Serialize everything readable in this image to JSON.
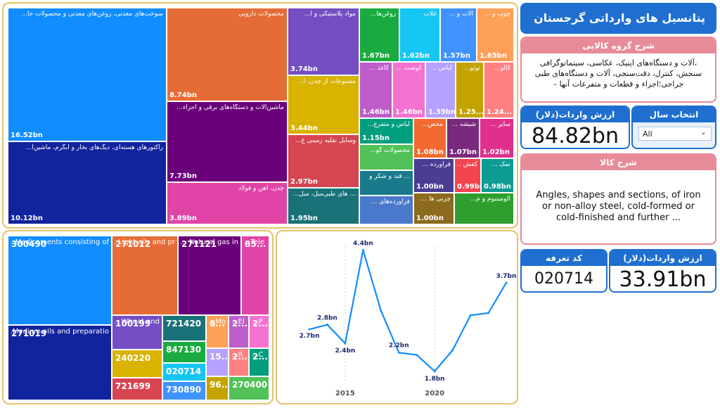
{
  "header": {
    "title": "پتانسیل های وارداتی گرجستان"
  },
  "group_desc": {
    "title": "شرح گروه کالایی",
    "text": "،آلات و دستگاه‌های اپتیک، عکاسی، سینماتوگرافی سنجش، کنترل، دقت‌سنجی، آلات و دستگاه‌های طبی جراحی؛اجزاء و قطعات و متفرعات آنها –"
  },
  "import_total": {
    "title": "ارزش واردات(دلار)",
    "value": "84.82bn"
  },
  "year_select": {
    "title": "انتخاب سال",
    "value": "All"
  },
  "goods_desc": {
    "title": "شرح کالا",
    "text": "Angles, shapes and sections, of iron or non-alloy steel, cold-formed or cold-finished and further ..."
  },
  "tariff": {
    "title": "کد تعرفه",
    "value": "020714"
  },
  "import_value": {
    "title": "ارزش واردات(دلار)",
    "value": "33.91bn"
  },
  "treemap1": [
    {
      "label": "سوخت‌های معدنی، روغن‌های معدنی و محصولات حا...",
      "value": "16.52bn",
      "color": "#118dff"
    },
    {
      "label": "رآکتورهای هسته‌ای، دیگ‌های بخار و آبگرم، ماشین‌آ...",
      "value": "10.12bn",
      "color": "#12239e"
    },
    {
      "label": "محصولات دارویی",
      "value": "8.74bn",
      "color": "#e66c37"
    },
    {
      "label": "ماشین‌آلات و دستگاه‌های برقی و اجزاء...",
      "value": "7.73bn",
      "color": "#6b007b"
    },
    {
      "label": "چدن، آهن و فولاد",
      "value": "3.89bn",
      "color": "#e044a7"
    },
    {
      "label": "مواد پلاستیکی و ا...",
      "value": "3.74bn",
      "color": "#744ec2"
    },
    {
      "label": "مصنوعات از چدن، آ...",
      "value": "3.44bn",
      "color": "#d9b300"
    },
    {
      "label": "وسایل نقلیه زمینی غ...",
      "value": "2.97bn",
      "color": "#d64550"
    },
    {
      "label": "... های طبی‌مبل، مبل...",
      "value": "1.95bn",
      "color": "#197278"
    },
    {
      "label": "روغن‌ها...",
      "value": "1.67bn",
      "color": "#1aab40"
    },
    {
      "label": "غلات",
      "value": "1.62bn",
      "color": "#15c6f4"
    },
    {
      "label": "آلات و ...",
      "value": "1.57bn",
      "color": "#4092ff"
    },
    {
      "label": "چوب و ...",
      "value": "1.65bn",
      "color": "#ffa058"
    },
    {
      "label": "کاغذ ...",
      "value": "1.46bn",
      "color": "#be5dc9"
    },
    {
      "label": "گوشت ...",
      "value": "1.46bn",
      "color": "#f472d0"
    },
    {
      "label": "لباس ...",
      "value": "1.35bn",
      "color": "#b5a1ff"
    },
    {
      "label": "توتو...",
      "value": "1.25...",
      "color": "#c4a200"
    },
    {
      "label": "کالو...",
      "value": "1.24...",
      "color": "#ff8080"
    },
    {
      "label": "لباس و متفرع...",
      "value": "1.15bn",
      "color": "#009e7d"
    },
    {
      "label": "محصولات گو...",
      "value": "",
      "color": "#52c157"
    },
    {
      "label": "... قند و شکر و",
      "value": "",
      "color": "#1a7a8c"
    },
    {
      "label": "فرآورده‌های ...",
      "value": "",
      "color": "#4a79cc"
    },
    {
      "label": "محص...",
      "value": "1.08bn",
      "color": "#f26a2f"
    },
    {
      "label": "شیشه ...",
      "value": "1.07bn",
      "color": "#7a2a7d"
    },
    {
      "label": "سایر ...",
      "value": "1.02bn",
      "color": "#e0308e"
    },
    {
      "label": "فرآورده ...",
      "value": "1.00bn",
      "color": "#4b3d94"
    },
    {
      "label": "کفش ...",
      "value": "0.99bn",
      "color": "#f2444f"
    },
    {
      "label": "نمک ...",
      "value": "0.98bn",
      "color": "#0d9c94"
    },
    {
      "label": "چربی ها ...",
      "value": "1.00bn",
      "color": "#8c6a1e"
    },
    {
      "label": "آلومینیوم و م...",
      "value": "",
      "color": "#2e9e2e"
    }
  ],
  "treemap2": [
    {
      "code": "300490",
      "label": "Medicaments consisting of ...",
      "color": "#118dff"
    },
    {
      "code": "271019",
      "label": "Medium oils and preparatio...",
      "color": "#12239e"
    },
    {
      "code": "271012",
      "label": "Light oils and pr...",
      "color": "#e66c37"
    },
    {
      "code": "271121",
      "label": "Natural gas in ...",
      "color": "#6b007b"
    },
    {
      "code": "85...",
      "label": "Tele...",
      "color": "#e044a7"
    },
    {
      "code": "100199",
      "label": "Wheat and ...",
      "color": "#744ec2"
    },
    {
      "code": "240220",
      "label": "",
      "color": "#d9b300"
    },
    {
      "code": "721699",
      "label": "",
      "color": "#d64550"
    },
    {
      "code": "721420",
      "label": "",
      "color": "#197278"
    },
    {
      "code": "847130",
      "label": "",
      "color": "#1aab40"
    },
    {
      "code": "020714",
      "label": "",
      "color": "#15c6f4"
    },
    {
      "code": "730890",
      "label": "",
      "color": "#4092ff"
    },
    {
      "code": "8...",
      "label": "Mo...",
      "color": "#ffa058"
    },
    {
      "code": "2...",
      "label": "El...",
      "color": "#be5dc9"
    },
    {
      "code": "2...",
      "label": "P...",
      "color": "#f472d0"
    },
    {
      "code": "15...",
      "label": "",
      "color": "#b5a1ff"
    },
    {
      "code": "96...",
      "label": "",
      "color": "#c4a200"
    },
    {
      "code": "2...",
      "label": "R...",
      "color": "#ff8080"
    },
    {
      "code": "2...",
      "label": "C...",
      "color": "#009e7d"
    },
    {
      "code": "270400",
      "label": "",
      "color": "#52c157"
    }
  ],
  "chart_data": {
    "type": "line",
    "x": [
      2013,
      2014,
      2015,
      2016,
      2017,
      2018,
      2019,
      2020,
      2021,
      2022,
      2023,
      2024
    ],
    "values": [
      2.7,
      2.8,
      2.4,
      4.4,
      3.1,
      2.2,
      2.15,
      1.8,
      2.25,
      3.0,
      3.05,
      3.7
    ],
    "point_labels": [
      "2.7bn",
      "2.8bn",
      "2.4bn",
      "4.4bn",
      "",
      "2.2bn",
      "",
      "1.8bn",
      "",
      "",
      "",
      "3.7bn"
    ],
    "x_ticks": [
      "2015",
      "2020"
    ],
    "ylim": [
      1.6,
      4.5
    ],
    "color": "#118dff"
  }
}
